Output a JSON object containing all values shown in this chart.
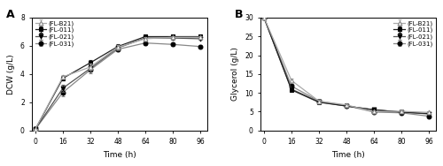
{
  "time": [
    0,
    16,
    32,
    48,
    64,
    80,
    96
  ],
  "dcw": {
    "FL-B21": [
      0.1,
      3.8,
      4.5,
      5.9,
      6.5,
      6.6,
      6.6
    ],
    "FL-011": [
      0.1,
      3.7,
      4.8,
      5.95,
      6.65,
      6.65,
      6.65
    ],
    "FL-021": [
      0.1,
      3.0,
      4.4,
      5.85,
      6.55,
      6.55,
      6.5
    ],
    "FL-031": [
      0.1,
      2.7,
      4.3,
      5.75,
      6.2,
      6.1,
      5.95
    ]
  },
  "dcw_err": {
    "FL-B21": [
      0.02,
      0.15,
      0.22,
      0.15,
      0.12,
      0.1,
      0.1
    ],
    "FL-011": [
      0.02,
      0.15,
      0.2,
      0.15,
      0.12,
      0.1,
      0.1
    ],
    "FL-021": [
      0.02,
      0.25,
      0.25,
      0.15,
      0.12,
      0.1,
      0.1
    ],
    "FL-031": [
      0.02,
      0.28,
      0.25,
      0.15,
      0.12,
      0.1,
      0.1
    ]
  },
  "glycerol": {
    "FL-B21": [
      30.0,
      13.3,
      7.8,
      6.8,
      5.0,
      5.1,
      4.8
    ],
    "FL-011": [
      30.0,
      10.8,
      7.5,
      6.5,
      5.5,
      4.9,
      4.5
    ],
    "FL-021": [
      30.0,
      11.0,
      7.6,
      6.5,
      5.5,
      4.9,
      4.4
    ],
    "FL-031": [
      30.0,
      11.8,
      7.8,
      6.6,
      4.9,
      4.7,
      3.8
    ]
  },
  "glycerol_err": {
    "FL-B21": [
      0.1,
      0.5,
      0.3,
      0.3,
      0.2,
      0.2,
      0.2
    ],
    "FL-011": [
      0.1,
      0.4,
      0.3,
      0.3,
      0.2,
      0.2,
      0.2
    ],
    "FL-021": [
      0.1,
      0.4,
      0.3,
      0.3,
      0.2,
      0.2,
      0.2
    ],
    "FL-031": [
      0.1,
      0.4,
      0.3,
      0.3,
      0.2,
      0.2,
      0.2
    ]
  },
  "strains": [
    "FL-B21",
    "FL-011",
    "FL-021",
    "FL-031"
  ],
  "markers": [
    "^",
    "s",
    "v",
    "o"
  ],
  "mfc": [
    "white",
    "black",
    "black",
    "black"
  ],
  "mec": [
    "#888888",
    "black",
    "black",
    "black"
  ],
  "line_colors": [
    "#aaaaaa",
    "#222222",
    "#555555",
    "#888888"
  ],
  "legend_labels": [
    "(FL-B21)",
    "(FL-011)",
    "(FL-021)",
    "(FL-031)"
  ],
  "dcw_ylim": [
    0,
    8
  ],
  "dcw_yticks": [
    0,
    2,
    4,
    6,
    8
  ],
  "glycerol_ylim": [
    0,
    30
  ],
  "glycerol_yticks": [
    0,
    5,
    10,
    15,
    20,
    25,
    30
  ],
  "xticks": [
    0,
    16,
    32,
    48,
    64,
    80,
    96
  ],
  "xlabel": "Time (h)",
  "dcw_ylabel": "DCW (g/L)",
  "glycerol_ylabel": "Glycerol (g/L)",
  "panel_A": "A",
  "panel_B": "B",
  "bg_color": "#ffffff"
}
